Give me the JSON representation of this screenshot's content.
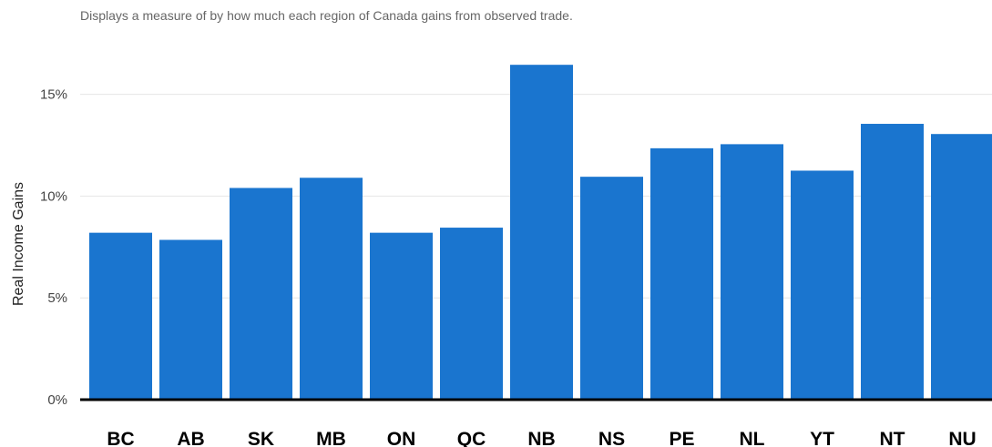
{
  "chart_data": {
    "type": "bar",
    "title": "",
    "subtitle": "Displays a measure of by how much each region of Canada gains from observed trade.",
    "xlabel": "",
    "ylabel": "Real Income Gains",
    "ylim": [
      0,
      17.8
    ],
    "yticks": [
      0,
      5,
      10,
      15
    ],
    "ytick_labels": [
      "0%",
      "5%",
      "10%",
      "15%"
    ],
    "grid": true,
    "categories": [
      "BC",
      "AB",
      "SK",
      "MB",
      "ON",
      "QC",
      "NB",
      "NS",
      "PE",
      "NL",
      "YT",
      "NT",
      "NU"
    ],
    "values": [
      8.2,
      7.85,
      10.4,
      10.9,
      8.2,
      8.45,
      16.45,
      10.95,
      12.35,
      12.55,
      11.25,
      13.55,
      13.05
    ],
    "unit": "%",
    "colors": {
      "bar": "#1a75cf",
      "grid": "#e6e6e6",
      "axis": "#000000"
    }
  }
}
